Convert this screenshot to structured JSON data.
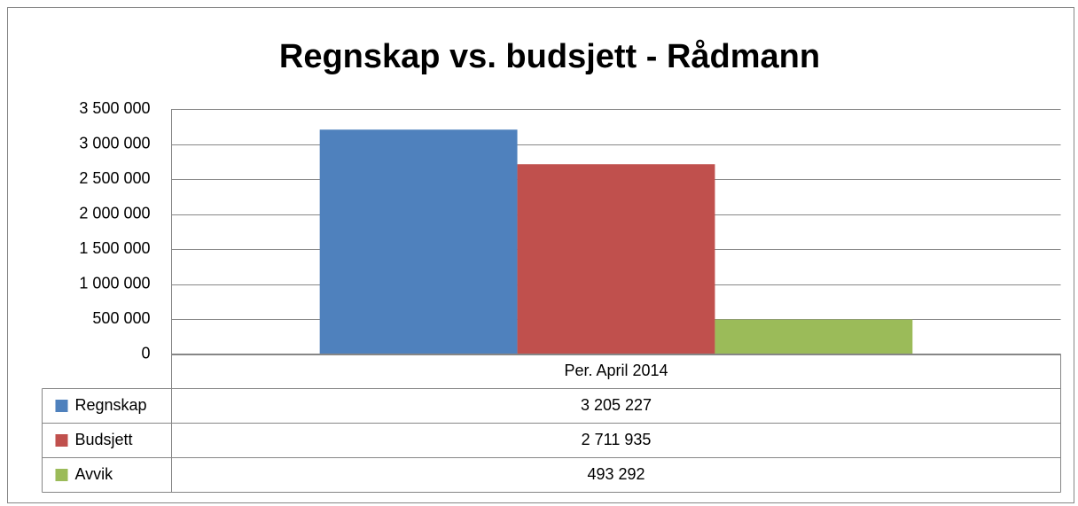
{
  "chart_data": {
    "type": "bar",
    "title": "Regnskap vs. budsjett - Rådmann",
    "categories": [
      "Per. April 2014"
    ],
    "series": [
      {
        "name": "Regnskap",
        "color": "#4f81bd",
        "values": [
          3205227
        ],
        "value_labels": [
          "3 205 227"
        ]
      },
      {
        "name": "Budsjett",
        "color": "#c0504d",
        "values": [
          2711935
        ],
        "value_labels": [
          "2 711 935"
        ]
      },
      {
        "name": "Avvik",
        "color": "#9bbb59",
        "values": [
          493292
        ],
        "value_labels": [
          "493 292"
        ]
      }
    ],
    "ylim": [
      0,
      3500000
    ],
    "yticks": [
      0,
      {
        "value": 500000,
        "label": "500 000"
      },
      {
        "value": 1000000,
        "label": "1 000 000"
      },
      {
        "value": 1500000,
        "label": "1 500 000"
      },
      {
        "value": 2000000,
        "label": "2 000 000"
      },
      {
        "value": 2500000,
        "label": "2 500 000"
      },
      {
        "value": 3000000,
        "label": "3 000 000"
      },
      {
        "value": 3500000,
        "label": "3 500 000"
      }
    ],
    "grid": true,
    "legend": "data-table"
  }
}
